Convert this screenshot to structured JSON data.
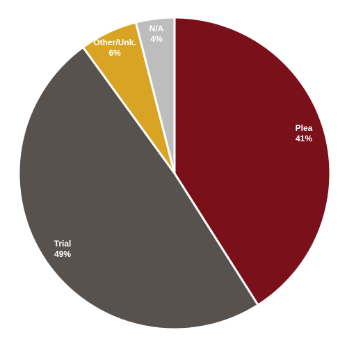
{
  "chart_data": {
    "type": "pie",
    "title": "",
    "start_angle_deg": 0,
    "direction": "clockwise",
    "slices": [
      {
        "label": "Plea",
        "value": 41,
        "value_label": "41%",
        "color": "#7A111A"
      },
      {
        "label": "Trial",
        "value": 49,
        "value_label": "49%",
        "color": "#58524F"
      },
      {
        "label": "Other/Unk.",
        "value": 6,
        "value_label": "6%",
        "color": "#D9A424"
      },
      {
        "label": "N/A",
        "value": 4,
        "value_label": "4%",
        "color": "#BDBDBD"
      }
    ],
    "legend": "none",
    "slice_border_color": "#ffffff"
  }
}
